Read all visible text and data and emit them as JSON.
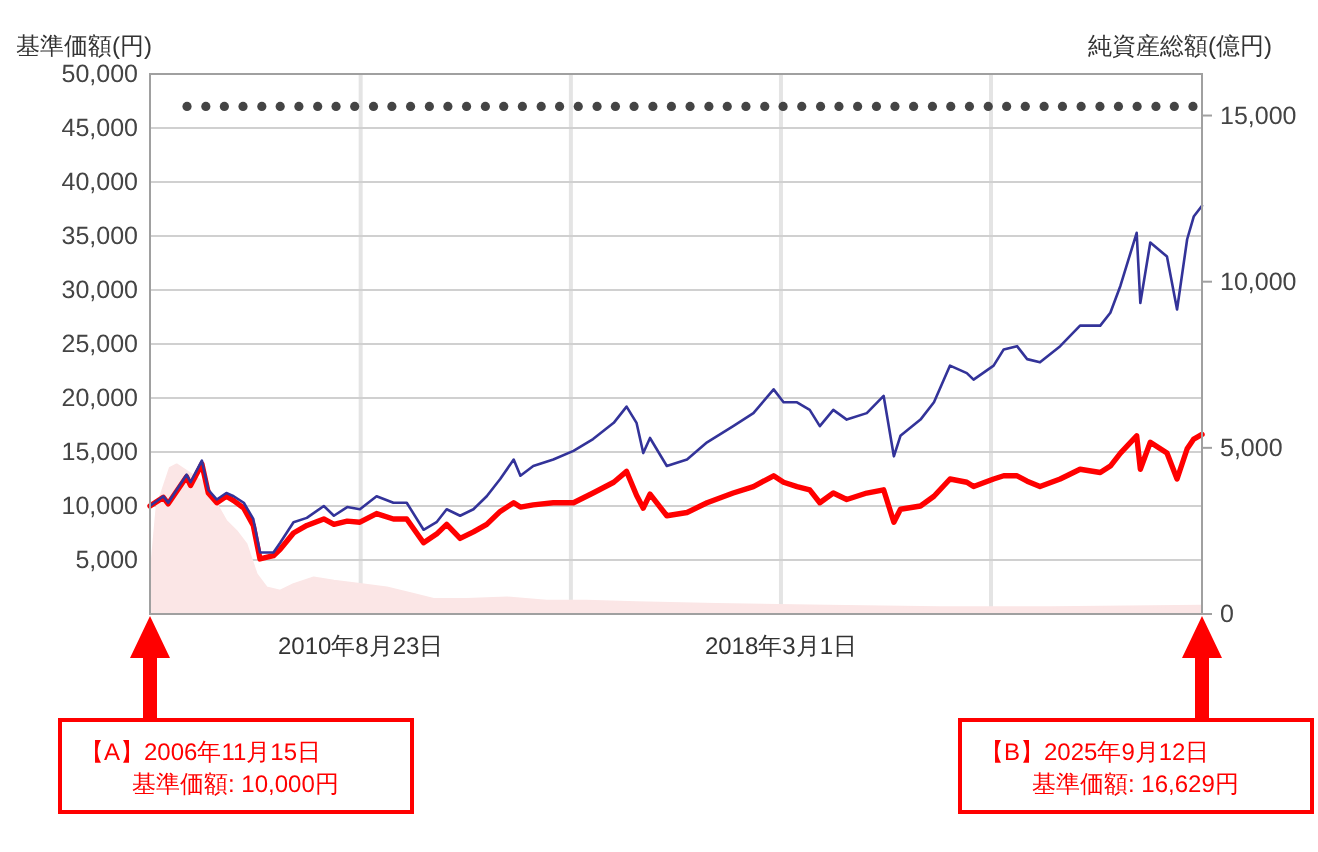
{
  "chart_data": {
    "type": "line",
    "ylabel": "基準価額(円)",
    "y2label": "純資産総額(億円)",
    "xlim": [
      "2006-11-15",
      "2025-09-12"
    ],
    "xticks": [
      {
        "value": "2010-08-23",
        "label": "2010年8月23日"
      },
      {
        "value": "2014-05-28",
        "label": null
      },
      {
        "value": "2018-03-01",
        "label": "2018年3月1日"
      },
      {
        "value": "2021-12-03",
        "label": null
      }
    ],
    "ylim": [
      0,
      50000
    ],
    "yticks": [
      {
        "value": 5000,
        "label": "5,000"
      },
      {
        "value": 10000,
        "label": "10,000"
      },
      {
        "value": 15000,
        "label": "15,000"
      },
      {
        "value": 20000,
        "label": "20,000"
      },
      {
        "value": 25000,
        "label": "25,000"
      },
      {
        "value": 30000,
        "label": "30,000"
      },
      {
        "value": 35000,
        "label": "35,000"
      },
      {
        "value": 40000,
        "label": "40,000"
      },
      {
        "value": 45000,
        "label": "45,000"
      },
      {
        "value": 50000,
        "label": "50,000"
      }
    ],
    "y2lim": [
      0,
      16250
    ],
    "y2ticks": [
      0,
      {
        "value": 5000,
        "label": "5,000"
      },
      {
        "value": 10000,
        "label": "10,000"
      },
      {
        "value": 15000,
        "label": "15,000"
      }
    ],
    "grid": true,
    "x": [
      "2006-11-15",
      "2007-02-10",
      "2007-03-14",
      "2007-07-12",
      "2007-08-07",
      "2007-10-20",
      "2007-12-01",
      "2008-01-26",
      "2008-03-28",
      "2008-05-15",
      "2008-07-20",
      "2008-09-20",
      "2008-11-03",
      "2009-01-30",
      "2009-03-15",
      "2009-06-10",
      "2009-09-05",
      "2009-12-25",
      "2010-03-01",
      "2010-05-27",
      "2010-08-18",
      "2010-12-05",
      "2011-03-25",
      "2011-06-20",
      "2011-10-08",
      "2012-01-01",
      "2012-03-07",
      "2012-06-03",
      "2012-08-29",
      "2012-11-24",
      "2013-02-20",
      "2013-05-19",
      "2013-07-02",
      "2013-09-24",
      "2014-02-02",
      "2014-06-14",
      "2014-10-20",
      "2015-03-04",
      "2015-05-27",
      "2015-07-31",
      "2015-09-13",
      "2015-10-27",
      "2016-02-14",
      "2016-06-25",
      "2016-11-03",
      "2017-04-23",
      "2017-09-02",
      "2018-01-12",
      "2018-03-18",
      "2018-06-14",
      "2018-09-05",
      "2018-11-10",
      "2019-02-06",
      "2019-05-05",
      "2019-09-13",
      "2020-01-01",
      "2020-03-08",
      "2020-04-20",
      "2020-08-29",
      "2020-11-25",
      "2021-03-10",
      "2021-06-28",
      "2021-08-11",
      "2021-12-20",
      "2022-02-24",
      "2022-05-22",
      "2022-07-27",
      "2022-10-19",
      "2023-02-28",
      "2023-07-08",
      "2023-11-17",
      "2024-01-22",
      "2024-03-28",
      "2024-07-12",
      "2024-08-05",
      "2024-10-09",
      "2025-01-26",
      "2025-04-02",
      "2025-06-07",
      "2025-07-20",
      "2025-09-12"
    ],
    "series": [
      {
        "type": "area",
        "axis": "y2",
        "color": "#fbe6e6",
        "x": [
          "2006-11-15",
          "2006-12-28",
          "2007-03-25",
          "2007-05-08",
          "2007-07-13",
          "2007-09-17",
          "2007-11-21",
          "2008-01-26",
          "2008-03-28",
          "2008-06-02",
          "2008-08-07",
          "2008-10-12",
          "2008-12-16",
          "2009-03-15",
          "2009-06-10",
          "2009-10-20",
          "2010-03-01",
          "2010-08-18",
          "2011-02-10",
          "2011-08-04",
          "2011-12-13",
          "2012-07-16",
          "2013-04-05",
          "2013-12-20",
          "2014-09-05",
          "2015-07-31",
          "2017-01-01",
          "2019-01-01",
          "2021-01-01",
          "2023-01-01",
          "2025-09-12"
        ],
        "values": [
          1000,
          3200,
          4400,
          4500,
          4300,
          4100,
          3900,
          3300,
          2800,
          2500,
          2100,
          1200,
          800,
          700,
          900,
          1100,
          1000,
          900,
          800,
          600,
          450,
          450,
          500,
          400,
          400,
          350,
          300,
          250,
          200,
          200,
          250
        ]
      },
      {
        "color": "#ff0000",
        "values": [
          10000,
          10800,
          10200,
          12700,
          11900,
          13900,
          11200,
          10300,
          10900,
          10500,
          9800,
          8200,
          5100,
          5400,
          6000,
          7500,
          8200,
          8800,
          8300,
          8600,
          8500,
          9300,
          8800,
          8800,
          6600,
          7400,
          8300,
          7000,
          7600,
          8300,
          9500,
          10300,
          9900,
          10100,
          10300,
          10300,
          11200,
          12200,
          13200,
          11000,
          9800,
          11100,
          9100,
          9400,
          10300,
          11200,
          11800,
          12800,
          12200,
          11800,
          11500,
          10300,
          11200,
          10600,
          11200,
          11500,
          8500,
          9700,
          10000,
          10900,
          12500,
          12200,
          11800,
          12500,
          12800,
          12800,
          12300,
          11800,
          12500,
          13400,
          13100,
          13700,
          14900,
          16500,
          13400,
          15900,
          14900,
          12500,
          15300,
          16200,
          16629
        ]
      },
      {
        "color": "#333399",
        "values": [
          10000,
          10900,
          10300,
          12900,
          12200,
          14200,
          11500,
          10600,
          11200,
          10900,
          10300,
          8800,
          5700,
          5700,
          6600,
          8500,
          8900,
          10000,
          9100,
          9900,
          9700,
          10900,
          10300,
          10300,
          7800,
          8500,
          9700,
          9100,
          9700,
          10900,
          12500,
          14300,
          12800,
          13700,
          14300,
          15100,
          16200,
          17700,
          19200,
          17700,
          14900,
          16300,
          13700,
          14300,
          15900,
          17400,
          18600,
          20800,
          19600,
          19600,
          18900,
          17400,
          18900,
          18000,
          18600,
          20200,
          14600,
          16500,
          18000,
          19600,
          23000,
          22300,
          21700,
          23000,
          24500,
          24800,
          23600,
          23300,
          24800,
          26700,
          26700,
          27900,
          30400,
          35300,
          28800,
          34400,
          33100,
          28200,
          34700,
          36800,
          37800
        ]
      },
      {
        "type": "scatter",
        "marker": "circle",
        "color": "#444444",
        "x": [
          "2007-07-15",
          "2007-11-15",
          "2008-03-15",
          "2008-07-15",
          "2008-11-15",
          "2009-03-15",
          "2009-07-15",
          "2009-11-15",
          "2010-03-15",
          "2010-07-15",
          "2010-11-15",
          "2011-03-15",
          "2011-07-15",
          "2011-11-15",
          "2012-03-15",
          "2012-07-15",
          "2012-11-15",
          "2013-03-15",
          "2013-07-15",
          "2013-11-15",
          "2014-03-15",
          "2014-07-15",
          "2014-11-15",
          "2015-03-15",
          "2015-07-15",
          "2015-11-15",
          "2016-03-15",
          "2016-07-15",
          "2016-11-15",
          "2017-03-15",
          "2017-07-15",
          "2017-11-15",
          "2018-03-15",
          "2018-07-15",
          "2018-11-15",
          "2019-03-15",
          "2019-07-15",
          "2019-11-15",
          "2020-03-15",
          "2020-07-15",
          "2020-11-15",
          "2021-03-15",
          "2021-07-15",
          "2021-11-15",
          "2022-03-15",
          "2022-07-15",
          "2022-11-15",
          "2023-03-15",
          "2023-07-15",
          "2023-11-15",
          "2024-03-15",
          "2024-07-15",
          "2024-11-15",
          "2025-03-15",
          "2025-07-15"
        ],
        "values": [
          47000,
          47000,
          47000,
          47000,
          47000,
          47000,
          47000,
          47000,
          47000,
          47000,
          47000,
          47000,
          47000,
          47000,
          47000,
          47000,
          47000,
          47000,
          47000,
          47000,
          47000,
          47000,
          47000,
          47000,
          47000,
          47000,
          47000,
          47000,
          47000,
          47000,
          47000,
          47000,
          47000,
          47000,
          47000,
          47000,
          47000,
          47000,
          47000,
          47000,
          47000,
          47000,
          47000,
          47000,
          47000,
          47000,
          47000,
          47000,
          47000,
          47000,
          47000,
          47000,
          47000,
          47000,
          47000
        ]
      }
    ],
    "annotations": [
      "【A】2006年11月15日",
      "基準価額: 10,000円",
      "【B】2025年9月12日",
      "基準価額: 16,629円"
    ]
  }
}
